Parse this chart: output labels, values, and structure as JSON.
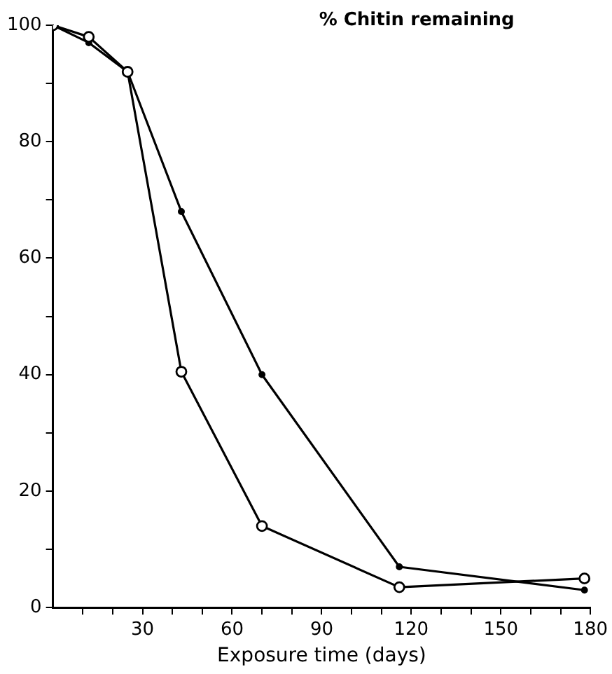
{
  "chart_data": {
    "type": "line",
    "ylabel": "% Chitin remaining",
    "xlabel": "Exposure time (days)",
    "xlim": [
      0,
      180
    ],
    "ylim": [
      0,
      100
    ],
    "xticks": [
      {
        "value": 10,
        "label": null
      },
      {
        "value": 20,
        "label": null
      },
      30,
      {
        "value": 40,
        "label": null
      },
      {
        "value": 50,
        "label": null
      },
      60,
      {
        "value": 70,
        "label": null
      },
      {
        "value": 80,
        "label": null
      },
      90,
      {
        "value": 100,
        "label": null
      },
      {
        "value": 110,
        "label": null
      },
      120,
      {
        "value": 130,
        "label": null
      },
      {
        "value": 140,
        "label": null
      },
      150,
      {
        "value": 160,
        "label": null
      },
      {
        "value": 170,
        "label": null
      },
      180
    ],
    "yticks": [
      0,
      {
        "value": 10,
        "label": null
      },
      20,
      {
        "value": 30,
        "label": null
      },
      40,
      {
        "value": 50,
        "label": null
      },
      60,
      {
        "value": 70,
        "label": null
      },
      80,
      {
        "value": 90,
        "label": null
      },
      100
    ],
    "grid": false,
    "legend": false,
    "line_style": "solid",
    "series": [
      {
        "color": "#000000",
        "marker": "circle",
        "x": [
          0,
          12,
          25,
          43,
          70,
          116,
          178
        ],
        "values": [
          100,
          98,
          92,
          40.5,
          14,
          3.5,
          5
        ]
      },
      {
        "color": "#000000",
        "marker": "circle",
        "x": [
          0,
          12,
          25,
          43,
          70,
          116,
          178
        ],
        "values": [
          100,
          97,
          92,
          68,
          40,
          7,
          3
        ]
      }
    ]
  }
}
